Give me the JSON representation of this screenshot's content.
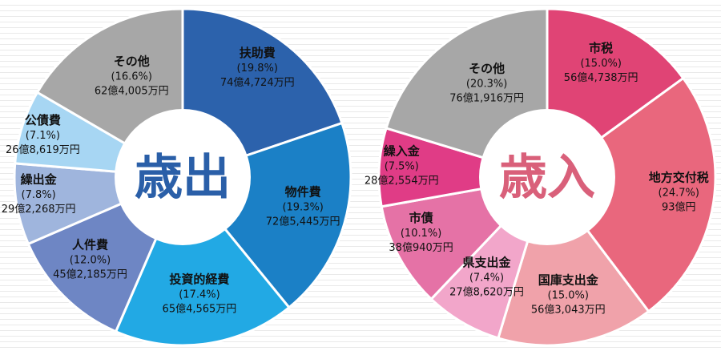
{
  "chart_data": [
    {
      "type": "pie",
      "center_label": "歳出",
      "center_color": "#2a5fa8",
      "slices": [
        {
          "name": "扶助費",
          "percent": 19.8,
          "value_label": "74億4,724万円",
          "color": "#2c62ac"
        },
        {
          "name": "物件費",
          "percent": 19.3,
          "value_label": "72億5,445万円",
          "color": "#1b80c6"
        },
        {
          "name": "投資的経費",
          "percent": 17.4,
          "value_label": "65億4,565万円",
          "color": "#22a9e4"
        },
        {
          "name": "人件費",
          "percent": 12.0,
          "value_label": "45億2,185万円",
          "color": "#6e86c4"
        },
        {
          "name": "繰出金",
          "percent": 7.8,
          "value_label": "29億2,268万円",
          "color": "#9fb5dd"
        },
        {
          "name": "公債費",
          "percent": 7.1,
          "value_label": "26億8,619万円",
          "color": "#a7d6f3"
        },
        {
          "name": "その他",
          "percent": 16.6,
          "value_label": "62億4,005万円",
          "color": "#a7a7a7"
        }
      ]
    },
    {
      "type": "pie",
      "center_label": "歳入",
      "center_color": "#d9607a",
      "slices": [
        {
          "name": "市税",
          "percent": 15.0,
          "value_label": "56億4,738万円",
          "color": "#e04475"
        },
        {
          "name": "地方交付税",
          "percent": 24.7,
          "value_label": "93億円",
          "color": "#e9677d"
        },
        {
          "name": "国庫支出金",
          "percent": 15.0,
          "value_label": "56億3,043万円",
          "color": "#f0a2aa"
        },
        {
          "name": "県支出金",
          "percent": 7.4,
          "value_label": "27億8,620万円",
          "color": "#f2a6ca"
        },
        {
          "name": "市債",
          "percent": 10.1,
          "value_label": "38億940万円",
          "color": "#e572a6"
        },
        {
          "name": "繰入金",
          "percent": 7.5,
          "value_label": "28億2,554万円",
          "color": "#e03c86"
        },
        {
          "name": "その他",
          "percent": 20.3,
          "value_label": "76億1,916万円",
          "color": "#a7a7a7"
        }
      ]
    }
  ]
}
